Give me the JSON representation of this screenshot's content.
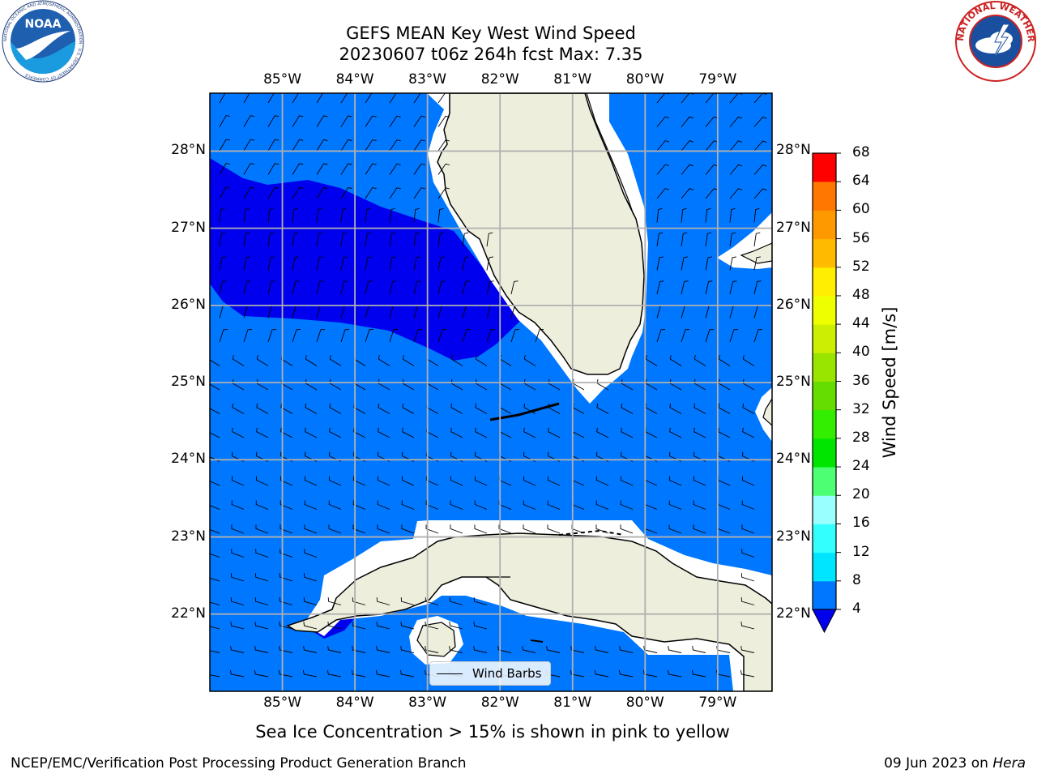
{
  "header": {
    "title_line1": "GEFS MEAN Key West Wind Speed",
    "title_line2": "20230607 t06z 264h fcst   Max: 7.35"
  },
  "logos": {
    "noaa_icon": "noaa-logo",
    "noaa_text": "NOAA",
    "noaa_ring_text": "NATIONAL OCEANIC AND ATMOSPHERIC ADMINISTRATION · U.S. DEPARTMENT OF COMMERCE",
    "nws_icon": "nws-logo",
    "nws_ring_text": "NATIONAL WEATHER SERVICE"
  },
  "map": {
    "lon_labels": [
      "85°W",
      "84°W",
      "83°W",
      "82°W",
      "81°W",
      "80°W",
      "79°W"
    ],
    "lat_labels": [
      "28°N",
      "27°N",
      "26°N",
      "25°N",
      "24°N",
      "23°N",
      "22°N"
    ],
    "extent": {
      "lon_min": -86.0,
      "lon_max": -78.25,
      "lat_min": 21.0,
      "lat_max": 28.75
    },
    "colors": {
      "ocean_4_8": "#0077ff",
      "ocean_lt4": "#0000ee",
      "land": "#eeeedd",
      "coast": "#000000",
      "grid": "#b0b0b0"
    },
    "legend_label": "Wind Barbs"
  },
  "colorbar": {
    "label": "Wind Speed [m/s]",
    "ticks": [
      "4",
      "8",
      "12",
      "16",
      "20",
      "24",
      "28",
      "32",
      "36",
      "40",
      "44",
      "48",
      "52",
      "56",
      "60",
      "64",
      "68"
    ],
    "under_color": "#0000ee",
    "colors": [
      "#0077ff",
      "#00e5ff",
      "#33ffff",
      "#99ffff",
      "#4cff73",
      "#00e500",
      "#33ee00",
      "#66dd00",
      "#99e500",
      "#ccee00",
      "#eeff00",
      "#ffee00",
      "#ffbb00",
      "#ff9900",
      "#ff7700",
      "#ff4400"
    ],
    "top_color": "#ff0000"
  },
  "subtitle": "Sea Ice Concentration > 15% is shown in pink to yellow",
  "footer": {
    "left": "NCEP/EMC/Verification Post Processing Product Generation Branch",
    "date": "09 Jun 2023 on ",
    "host": "Hera"
  }
}
